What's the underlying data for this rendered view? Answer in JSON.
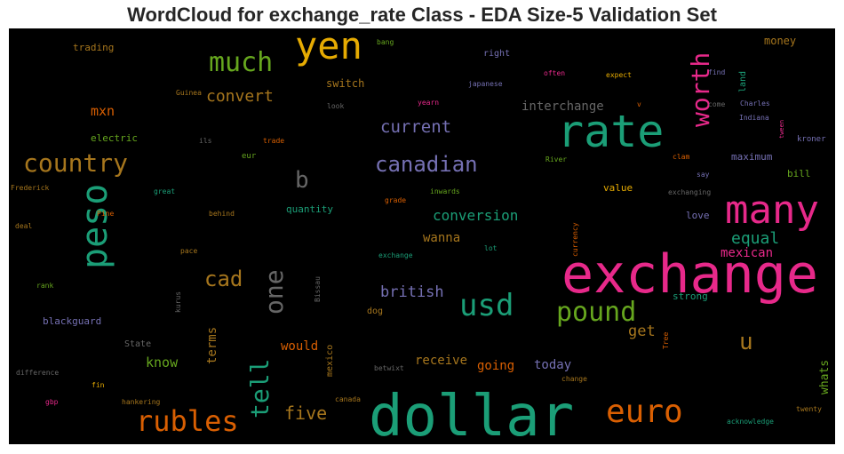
{
  "chart_data": {
    "type": "wordcloud",
    "title": "WordCloud for exchange_rate Class - EDA Size-5 Validation Set",
    "palette": {
      "teal": "#1b9e77",
      "orange": "#d95f02",
      "purple": "#7570b3",
      "pink": "#e7298a",
      "green": "#66a61e",
      "gold": "#e6ab02",
      "brown": "#a6761d",
      "gray": "#666666",
      "background": "#000000"
    },
    "words": [
      {
        "text": "exchange",
        "color": "#e7298a"
      },
      {
        "text": "dollar",
        "color": "#1b9e77"
      },
      {
        "text": "rate",
        "color": "#1b9e77"
      },
      {
        "text": "yen",
        "color": "#e6ab02"
      },
      {
        "text": "peso",
        "color": "#1b9e77"
      },
      {
        "text": "many",
        "color": "#e7298a"
      },
      {
        "text": "usd",
        "color": "#1b9e77"
      },
      {
        "text": "euro",
        "color": "#d95f02"
      },
      {
        "text": "rubles",
        "color": "#d95f02"
      },
      {
        "text": "much",
        "color": "#66a61e"
      },
      {
        "text": "pound",
        "color": "#66a61e"
      },
      {
        "text": "country",
        "color": "#a6761d"
      },
      {
        "text": "canadian",
        "color": "#7570b3"
      },
      {
        "text": "worth",
        "color": "#e7298a"
      },
      {
        "text": "tell",
        "color": "#1b9e77"
      },
      {
        "text": "one",
        "color": "#666666"
      },
      {
        "text": "b",
        "color": "#666666"
      },
      {
        "text": "u",
        "color": "#a6761d"
      },
      {
        "text": "cad",
        "color": "#a6761d"
      },
      {
        "text": "five",
        "color": "#a6761d"
      },
      {
        "text": "current",
        "color": "#7570b3"
      },
      {
        "text": "convert",
        "color": "#a6761d"
      },
      {
        "text": "equal",
        "color": "#1b9e77"
      },
      {
        "text": "conversion",
        "color": "#1b9e77"
      },
      {
        "text": "british",
        "color": "#7570b3"
      },
      {
        "text": "get",
        "color": "#a6761d"
      },
      {
        "text": "mxn",
        "color": "#d95f02"
      },
      {
        "text": "interchange",
        "color": "#666666"
      },
      {
        "text": "mexican",
        "color": "#e7298a"
      },
      {
        "text": "know",
        "color": "#66a61e"
      },
      {
        "text": "terms",
        "color": "#a6761d"
      },
      {
        "text": "would",
        "color": "#d95f02"
      },
      {
        "text": "receive",
        "color": "#a6761d"
      },
      {
        "text": "going",
        "color": "#d95f02"
      },
      {
        "text": "today",
        "color": "#7570b3"
      },
      {
        "text": "wanna",
        "color": "#a6761d"
      },
      {
        "text": "whats",
        "color": "#66a61e"
      },
      {
        "text": "switch",
        "color": "#a6761d"
      },
      {
        "text": "money",
        "color": "#a6761d"
      },
      {
        "text": "trading",
        "color": "#a6761d"
      },
      {
        "text": "quantity",
        "color": "#1b9e77"
      },
      {
        "text": "electric",
        "color": "#66a61e"
      },
      {
        "text": "blackguard",
        "color": "#7570b3"
      },
      {
        "text": "maximum",
        "color": "#7570b3"
      },
      {
        "text": "bill",
        "color": "#66a61e"
      },
      {
        "text": "value",
        "color": "#e6ab02"
      },
      {
        "text": "love",
        "color": "#7570b3"
      },
      {
        "text": "strong",
        "color": "#1b9e77"
      },
      {
        "text": "land",
        "color": "#1b9e77"
      },
      {
        "text": "mexico",
        "color": "#a6761d"
      },
      {
        "text": "right",
        "color": "#7570b3"
      },
      {
        "text": "dog",
        "color": "#a6761d"
      },
      {
        "text": "State",
        "color": "#666666"
      },
      {
        "text": "eur",
        "color": "#66a61e"
      },
      {
        "text": "kroner",
        "color": "#7570b3"
      },
      {
        "text": "Charles",
        "color": "#7570b3"
      },
      {
        "text": "Indiana",
        "color": "#7570b3"
      },
      {
        "text": "come",
        "color": "#666666"
      },
      {
        "text": "tween",
        "color": "#e7298a"
      },
      {
        "text": "say",
        "color": "#7570b3"
      },
      {
        "text": "clam",
        "color": "#d95f02"
      },
      {
        "text": "exchanging",
        "color": "#666666"
      },
      {
        "text": "expect",
        "color": "#e6ab02"
      },
      {
        "text": "japanese",
        "color": "#7570b3"
      },
      {
        "text": "often",
        "color": "#e7298a"
      },
      {
        "text": "find",
        "color": "#7570b3"
      },
      {
        "text": "bang",
        "color": "#66a61e"
      },
      {
        "text": "Guinea",
        "color": "#a6761d"
      },
      {
        "text": "look",
        "color": "#666666"
      },
      {
        "text": "yearn",
        "color": "#e7298a"
      },
      {
        "text": "v",
        "color": "#d95f02"
      },
      {
        "text": "ils",
        "color": "#666666"
      },
      {
        "text": "trade",
        "color": "#d95f02"
      },
      {
        "text": "River",
        "color": "#66a61e"
      },
      {
        "text": "Frederick",
        "color": "#a6761d"
      },
      {
        "text": "great",
        "color": "#1b9e77"
      },
      {
        "text": "inwards",
        "color": "#66a61e"
      },
      {
        "text": "grade",
        "color": "#d95f02"
      },
      {
        "text": "Pine",
        "color": "#d95f02"
      },
      {
        "text": "behind",
        "color": "#a6761d"
      },
      {
        "text": "deal",
        "color": "#a6761d"
      },
      {
        "text": "currency",
        "color": "#d95f02"
      },
      {
        "text": "lot",
        "color": "#1b9e77"
      },
      {
        "text": "pace",
        "color": "#a6761d"
      },
      {
        "text": "exchange",
        "color": "#1b9e77"
      },
      {
        "text": "rank",
        "color": "#66a61e"
      },
      {
        "text": "kurus",
        "color": "#666666"
      },
      {
        "text": "Bissau",
        "color": "#666666"
      },
      {
        "text": "Tree",
        "color": "#d95f02"
      },
      {
        "text": "difference",
        "color": "#666666"
      },
      {
        "text": "betwixt",
        "color": "#666666"
      },
      {
        "text": "change",
        "color": "#a6761d"
      },
      {
        "text": "fin",
        "color": "#e6ab02"
      },
      {
        "text": "gbp",
        "color": "#e7298a"
      },
      {
        "text": "hankering",
        "color": "#a6761d"
      },
      {
        "text": "canada",
        "color": "#a6761d"
      },
      {
        "text": "acknowledge",
        "color": "#1b9e77"
      },
      {
        "text": "twenty",
        "color": "#a6761d"
      }
    ]
  }
}
